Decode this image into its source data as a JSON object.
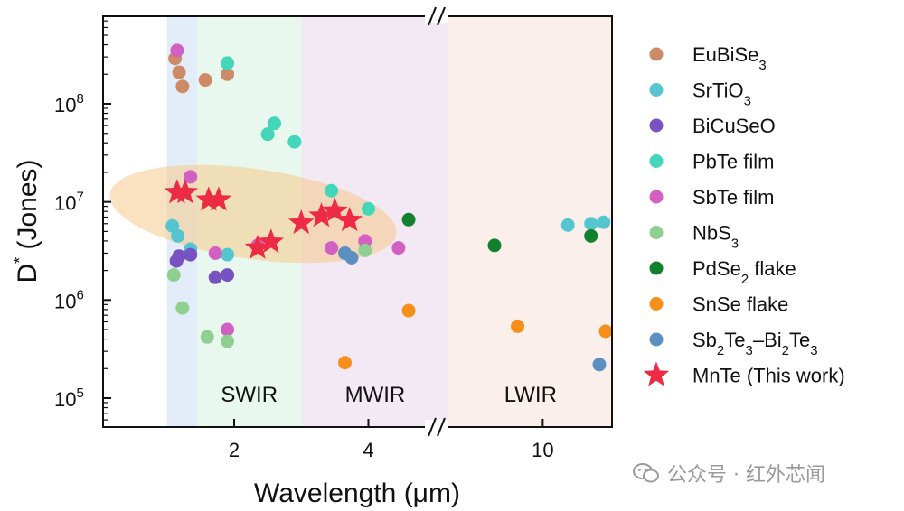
{
  "chart_data": {
    "type": "scatter",
    "xlabel": "Wavelength (μm)",
    "ylabel_main": "D",
    "ylabel_sup": "*",
    "ylabel_rest": " (Jones)",
    "yscale": "log",
    "ylim": [
      50000,
      1000000000
    ],
    "x_ticks": [
      {
        "value": 2,
        "label": "2"
      },
      {
        "value": 4,
        "label": "4"
      },
      {
        "value": 10,
        "label": "10"
      }
    ],
    "y_ticks": [
      {
        "exp": 5,
        "base": "10",
        "sup": "5"
      },
      {
        "exp": 6,
        "base": "10",
        "sup": "6"
      },
      {
        "exp": 7,
        "base": "10",
        "sup": "7"
      },
      {
        "exp": 8,
        "base": "10",
        "sup": "8"
      }
    ],
    "regions": [
      {
        "label": "",
        "color": "#e3edf9",
        "from": 1.0,
        "to": 1.45
      },
      {
        "label": "SWIR",
        "color": "#e9f8ee",
        "from": 1.45,
        "to": 3.0
      },
      {
        "label": "MWIR",
        "color": "#f2e9f5",
        "from": 3.0,
        "to": 5.2
      },
      {
        "label": "LWIR",
        "color": "#fbefec",
        "from": 5.2,
        "to": 14.0
      }
    ],
    "series": [
      {
        "name": "EuBiSe",
        "sub": "3",
        "color": "#cd8a66",
        "marker": "circle",
        "points": [
          [
            1.12,
            290000000.0
          ],
          [
            1.18,
            210000000.0
          ],
          [
            1.23,
            150000000.0
          ],
          [
            1.57,
            175000000.0
          ],
          [
            1.9,
            200000000.0
          ]
        ]
      },
      {
        "name": "SrTiO",
        "sub": "3",
        "color": "#55c6d0",
        "marker": "circle",
        "points": [
          [
            1.08,
            5700000.0
          ],
          [
            1.16,
            4500000.0
          ],
          [
            1.35,
            3300000.0
          ],
          [
            1.9,
            2900000.0
          ],
          [
            11.2,
            5800000.0
          ],
          [
            12.3,
            6000000.0
          ],
          [
            12.9,
            6200000.0
          ]
        ]
      },
      {
        "name": "BiCuSeO",
        "sub": "",
        "color": "#7852c0",
        "marker": "circle",
        "points": [
          [
            1.14,
            2500000.0
          ],
          [
            1.18,
            2800000.0
          ],
          [
            1.35,
            2900000.0
          ],
          [
            1.72,
            1700000.0
          ],
          [
            1.9,
            1800000.0
          ]
        ]
      },
      {
        "name": "PbTe film",
        "sub": "",
        "color": "#44d6b8",
        "marker": "circle",
        "points": [
          [
            1.9,
            260000000.0
          ],
          [
            2.5,
            49000000.0
          ],
          [
            2.6,
            63000000.0
          ],
          [
            2.9,
            41000000.0
          ],
          [
            3.45,
            13000000.0
          ],
          [
            4.0,
            8500000.0
          ]
        ]
      },
      {
        "name": "SbTe film",
        "sub": "",
        "color": "#d160c2",
        "marker": "circle",
        "points": [
          [
            1.15,
            350000000.0
          ],
          [
            1.35,
            18000000.0
          ],
          [
            1.72,
            3000000.0
          ],
          [
            1.9,
            500000.0
          ],
          [
            2.35,
            3600000.0
          ],
          [
            3.45,
            3400000.0
          ],
          [
            3.95,
            4000000.0
          ],
          [
            4.45,
            3400000.0
          ]
        ]
      },
      {
        "name": "NbS",
        "sub": "3",
        "color": "#8fcf90",
        "marker": "circle",
        "points": [
          [
            1.1,
            1800000.0
          ],
          [
            1.23,
            830000.0
          ],
          [
            1.6,
            420000.0
          ],
          [
            1.9,
            380000.0
          ],
          [
            3.95,
            3200000.0
          ]
        ]
      },
      {
        "name": "PdSe",
        "sub": "2",
        "after": " flake",
        "color": "#13802e",
        "marker": "circle",
        "points": [
          [
            4.6,
            6600000.0
          ],
          [
            7.7,
            3600000.0
          ],
          [
            12.3,
            4500000.0
          ]
        ]
      },
      {
        "name": "SnSe flake",
        "sub": "",
        "color": "#f6901a",
        "marker": "circle",
        "points": [
          [
            4.6,
            780000.0
          ],
          [
            3.65,
            230000.0
          ],
          [
            8.8,
            540000.0
          ],
          [
            13.0,
            480000.0
          ]
        ]
      },
      {
        "name": "Sb2Te3–Bi2Te3",
        "sub": "",
        "color": "#5b8fc0",
        "marker": "circle",
        "points": [
          [
            3.65,
            3000000.0
          ],
          [
            3.75,
            2700000.0
          ],
          [
            12.7,
            220000.0
          ]
        ]
      },
      {
        "name": "MnTe (This work)",
        "sub": "",
        "color": "#ee2b45",
        "marker": "star",
        "points": [
          [
            1.15,
            12500000.0
          ],
          [
            1.27,
            12500000.0
          ],
          [
            1.62,
            10500000.0
          ],
          [
            1.77,
            10500000.0
          ],
          [
            2.35,
            3400000.0
          ],
          [
            2.55,
            3900000.0
          ],
          [
            3.0,
            6100000.0
          ],
          [
            3.3,
            7200000.0
          ],
          [
            3.5,
            8100000.0
          ],
          [
            3.72,
            6500000.0
          ]
        ]
      }
    ],
    "legend_position": "right"
  },
  "watermark": {
    "text": "公众号 · 红外芯闻",
    "icon": "wechat-icon"
  }
}
